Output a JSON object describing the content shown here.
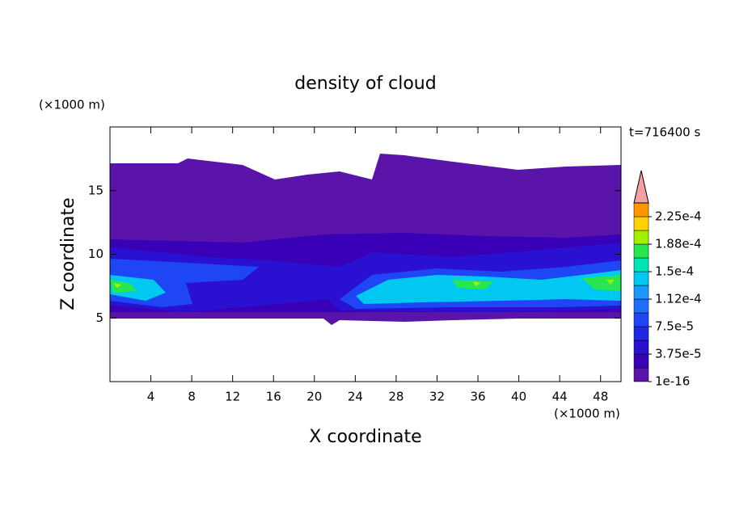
{
  "chart_data": {
    "type": "contour",
    "title": "density of cloud",
    "y_unit": "(×1000 m)",
    "x_unit": "(×1000 m)",
    "time_label": "t=716400 s",
    "xlabel": "X coordinate",
    "ylabel": "Z coordinate",
    "xlim": [
      0,
      50
    ],
    "xticks": [
      4,
      8,
      12,
      16,
      20,
      24,
      28,
      32,
      36,
      40,
      44,
      48
    ],
    "ylim": [
      0,
      20
    ],
    "yticks": [
      5,
      10,
      15
    ],
    "colorbar_ticks": [
      {
        "value": 1e-16,
        "label": "1e-16"
      },
      {
        "value": 3.75e-05,
        "label": "3.75e-5"
      },
      {
        "value": 7.5e-05,
        "label": "7.5e-5"
      },
      {
        "value": 0.000112,
        "label": "1.12e-4"
      },
      {
        "value": 0.00015,
        "label": "1.5e-4"
      },
      {
        "value": 0.000188,
        "label": "1.88e-4"
      },
      {
        "value": 0.000225,
        "label": "2.25e-4"
      }
    ],
    "colors": [
      "#5a14aa",
      "#3a00b8",
      "#2a10d0",
      "#1e28e6",
      "#1e46f5",
      "#1e6eff",
      "#1e96ff",
      "#00c8f0",
      "#00e6b4",
      "#28e650",
      "#a0f000",
      "#ffd200",
      "#ff9600",
      "#ff5000",
      "#ff1e1e"
    ],
    "extend_color": "#f4a0a0"
  }
}
